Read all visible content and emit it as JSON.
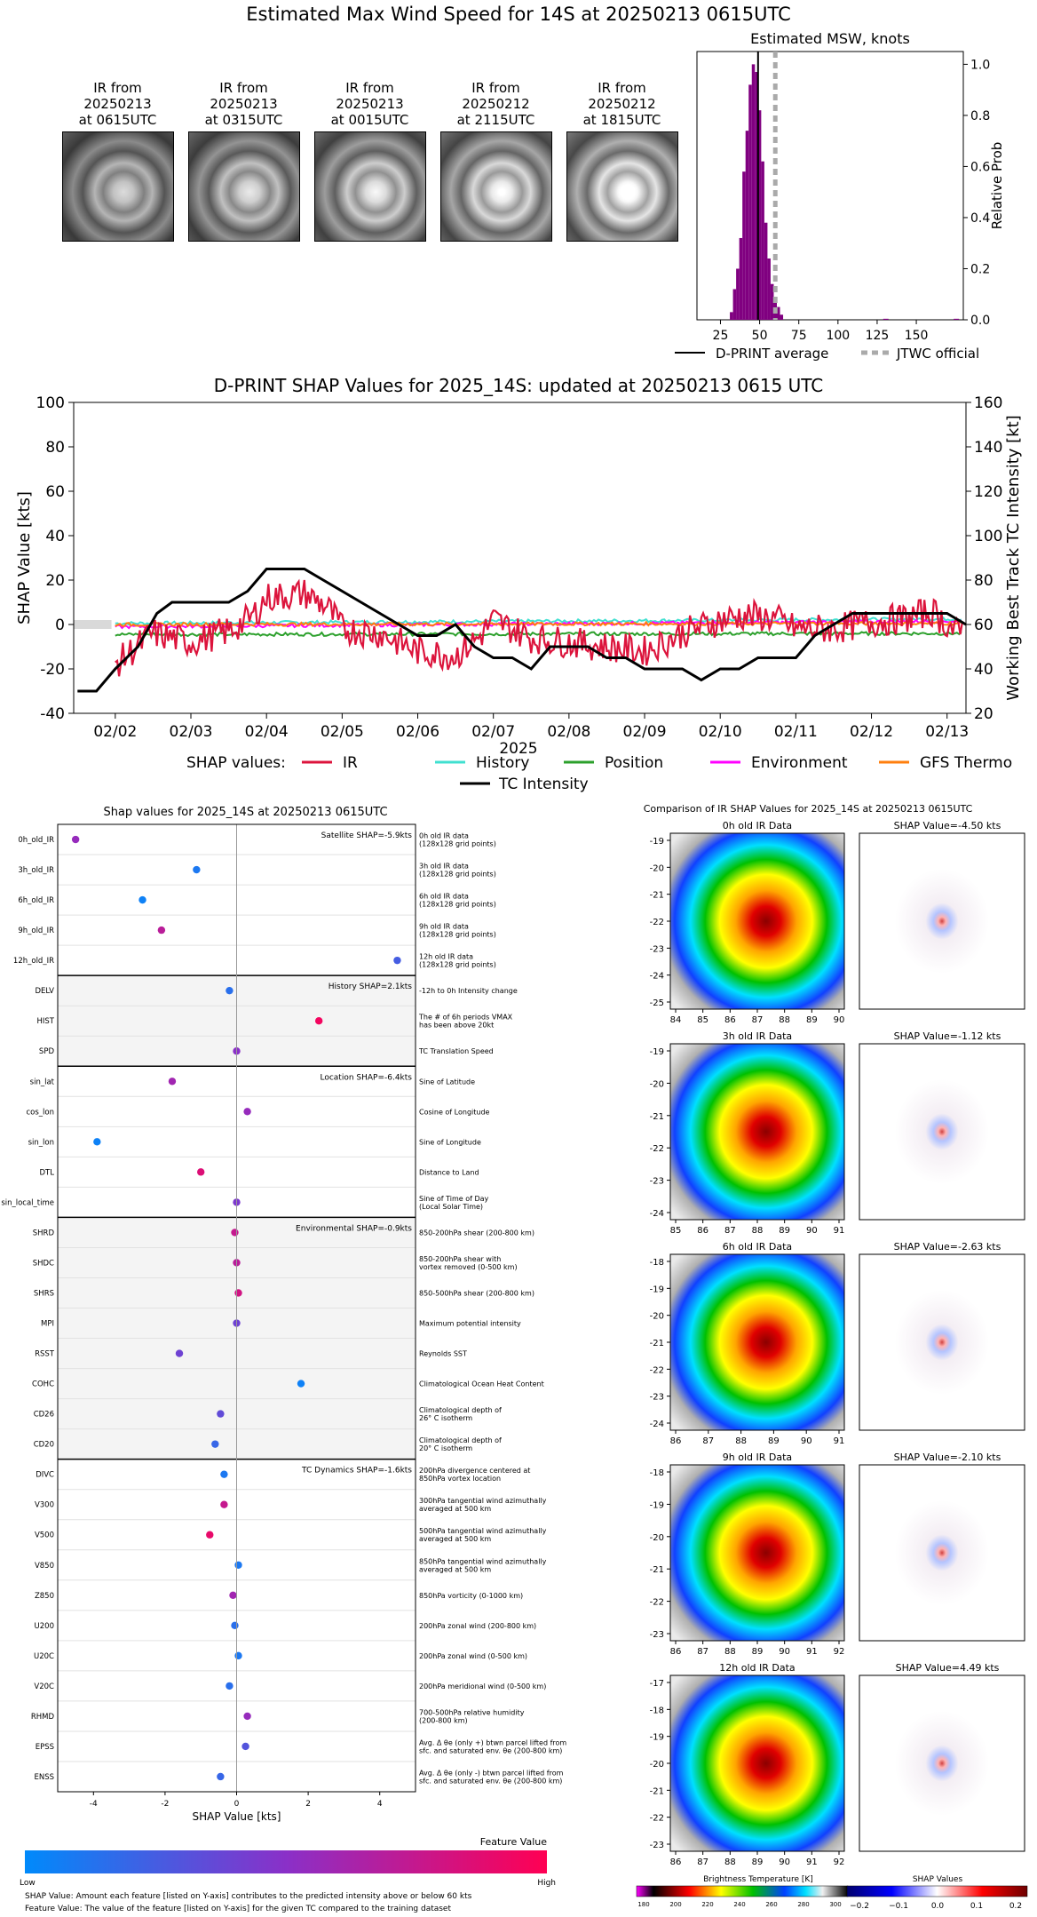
{
  "page_title": "Estimated Max Wind Speed for 14S at 20250213 0615UTC",
  "thumbnails": [
    {
      "label": [
        "IR from",
        "20250213",
        "at 0615UTC"
      ]
    },
    {
      "label": [
        "IR from",
        "20250213",
        "at 0315UTC"
      ]
    },
    {
      "label": [
        "IR from",
        "20250213",
        "at 0015UTC"
      ]
    },
    {
      "label": [
        "IR from",
        "20250212",
        "at 2115UTC"
      ]
    },
    {
      "label": [
        "IR from",
        "20250212",
        "at 1815UTC"
      ]
    }
  ],
  "chart_data": [
    {
      "id": "msw_histogram",
      "type": "bar",
      "title": "Estimated MSW, knots",
      "ylabel": "Relative Prob",
      "xlim": [
        10,
        180
      ],
      "ylim": [
        0,
        1.05
      ],
      "xticks": [
        "25",
        "50",
        "75",
        "100",
        "125",
        "150"
      ],
      "yticks": [
        "0.0",
        "0.2",
        "0.4",
        "0.6",
        "0.8",
        "1.0"
      ],
      "x": [
        32,
        34,
        36,
        38,
        40,
        42,
        44,
        46,
        48,
        50,
        52,
        54,
        56,
        58,
        60,
        62,
        64
      ],
      "values": [
        0.03,
        0.12,
        0.2,
        0.32,
        0.58,
        0.74,
        0.92,
        1.0,
        0.97,
        0.82,
        0.62,
        0.38,
        0.24,
        0.14,
        0.08,
        0.05,
        0.02
      ],
      "tail_values": [
        130,
        175
      ],
      "dprint_average": 49,
      "jtwc_official": 60,
      "legend": [
        "D-PRINT average",
        "JTWC official"
      ]
    },
    {
      "id": "shap_timeseries",
      "type": "line",
      "title": "D-PRINT SHAP Values for 2025_14S: updated at 20250213 0615 UTC",
      "xlabel": "2025",
      "ylabel": "SHAP Value [kts]",
      "ylabel_right": "Working Best Track TC Intensity [kt]",
      "ylim": [
        -40,
        100
      ],
      "ylim_right": [
        20,
        160
      ],
      "yticks": [
        "-40",
        "-20",
        "0",
        "20",
        "40",
        "60",
        "80",
        "100"
      ],
      "yticks_right": [
        "20",
        "40",
        "60",
        "80",
        "100",
        "120",
        "140",
        "160"
      ],
      "xticks": [
        "02/02",
        "02/03",
        "02/04",
        "02/05",
        "02/06",
        "02/07",
        "02/08",
        "02/09",
        "02/10",
        "02/11",
        "02/12",
        "02/13"
      ],
      "legend_prefix": "SHAP values:",
      "series": [
        {
          "name": "IR",
          "color": "#dc143c"
        },
        {
          "name": "History",
          "color": "#40e0d0"
        },
        {
          "name": "Position",
          "color": "#2ca02c"
        },
        {
          "name": "Environment",
          "color": "#ff00ff"
        },
        {
          "name": "GFS Thermo",
          "color": "#ff7f0e"
        },
        {
          "name": "TC Intensity",
          "color": "#000000"
        }
      ],
      "tc_intensity": {
        "t": [
          1.5,
          1.75,
          2.0,
          2.3,
          2.55,
          2.75,
          3.0,
          3.5,
          3.75,
          4.0,
          4.5,
          4.75,
          5.0,
          5.5,
          6.0,
          6.25,
          6.5,
          6.75,
          7.0,
          7.25,
          7.5,
          7.75,
          8.0,
          8.25,
          8.5,
          8.75,
          9.0,
          9.5,
          9.75,
          10.0,
          10.25,
          10.5,
          10.75,
          11.0,
          11.25,
          11.5,
          11.75,
          12.0,
          12.5,
          12.75,
          13.0,
          13.25
        ],
        "v": [
          30,
          30,
          40,
          50,
          65,
          70,
          70,
          70,
          75,
          85,
          85,
          80,
          75,
          65,
          55,
          55,
          60,
          50,
          45,
          45,
          40,
          50,
          50,
          50,
          45,
          45,
          40,
          40,
          35,
          40,
          40,
          45,
          45,
          45,
          55,
          60,
          65,
          65,
          65,
          65,
          65,
          60
        ]
      }
    },
    {
      "id": "feature_shap",
      "type": "scatter",
      "title": "Shap values for 2025_14S at 20250213 0615UTC",
      "xlabel": "SHAP Value [kts]",
      "xlim": [
        -5,
        5
      ],
      "xticks": [
        "-4",
        "-2",
        "0",
        "2",
        "4"
      ],
      "colorbar_label": "Feature Value",
      "colorbar_low": "Low",
      "colorbar_high": "High",
      "groups": [
        {
          "label": "Satellite SHAP=-5.9kts",
          "shaded": false,
          "features": [
            {
              "name": "0h_old_IR",
              "desc": [
                "0h old IR data",
                "(128x128 grid points)"
              ],
              "shap": -4.5,
              "value": 0.55
            },
            {
              "name": "3h_old_IR",
              "desc": [
                "3h old IR data",
                "(128x128 grid points)"
              ],
              "shap": -1.12,
              "value": 0.1
            },
            {
              "name": "6h_old_IR",
              "desc": [
                "6h old IR data",
                "(128x128 grid points)"
              ],
              "shap": -2.63,
              "value": 0.05
            },
            {
              "name": "9h_old_IR",
              "desc": [
                "9h old IR data",
                "(128x128 grid points)"
              ],
              "shap": -2.1,
              "value": 0.7
            },
            {
              "name": "12h_old_IR",
              "desc": [
                "12h old IR data",
                "(128x128 grid points)"
              ],
              "shap": 4.49,
              "value": 0.25
            }
          ]
        },
        {
          "label": "History SHAP=2.1kts",
          "shaded": true,
          "features": [
            {
              "name": "DELV",
              "desc": [
                "-12h to 0h Intensity change"
              ],
              "shap": -0.2,
              "value": 0.15
            },
            {
              "name": "HIST",
              "desc": [
                "The # of 6h periods VMAX",
                "has been above 20kt"
              ],
              "shap": 2.3,
              "value": 0.95
            },
            {
              "name": "SPD",
              "desc": [
                "TC Translation Speed"
              ],
              "shap": 0.0,
              "value": 0.5
            }
          ]
        },
        {
          "label": "Location SHAP=-6.4kts",
          "shaded": false,
          "features": [
            {
              "name": "sin_lat",
              "desc": [
                "Sine of Latitude"
              ],
              "shap": -1.8,
              "value": 0.6
            },
            {
              "name": "cos_lon",
              "desc": [
                "Cosine of Longitude"
              ],
              "shap": 0.3,
              "value": 0.55
            },
            {
              "name": "sin_lon",
              "desc": [
                "Sine of Longitude"
              ],
              "shap": -3.9,
              "value": 0.05
            },
            {
              "name": "DTL",
              "desc": [
                "Distance to Land"
              ],
              "shap": -1.0,
              "value": 0.85
            },
            {
              "name": "sin_local_time",
              "desc": [
                "Sine of Time of Day",
                "(Local Solar Time)"
              ],
              "shap": 0.0,
              "value": 0.45
            }
          ]
        },
        {
          "label": "Environmental SHAP=-0.9kts",
          "shaded": true,
          "features": [
            {
              "name": "SHRD",
              "desc": [
                "850-200hPa shear (200-800 km)"
              ],
              "shap": -0.05,
              "value": 0.75
            },
            {
              "name": "SHDC",
              "desc": [
                "850-200hPa shear with",
                "vortex removed (0-500 km)"
              ],
              "shap": 0.0,
              "value": 0.7
            },
            {
              "name": "SHRS",
              "desc": [
                "850-500hPa shear (200-800 km)"
              ],
              "shap": 0.05,
              "value": 0.8
            },
            {
              "name": "MPI",
              "desc": [
                "Maximum potential intensity"
              ],
              "shap": 0.0,
              "value": 0.4
            },
            {
              "name": "RSST",
              "desc": [
                "Reynolds SST"
              ],
              "shap": -1.6,
              "value": 0.4
            },
            {
              "name": "COHC",
              "desc": [
                "Climatological Ocean Heat Content"
              ],
              "shap": 1.8,
              "value": 0.05
            },
            {
              "name": "CD26",
              "desc": [
                "Climatological depth of",
                "26° C isotherm"
              ],
              "shap": -0.45,
              "value": 0.35
            },
            {
              "name": "CD20",
              "desc": [
                "Climatological depth of",
                "20° C isotherm"
              ],
              "shap": -0.6,
              "value": 0.2
            }
          ]
        },
        {
          "label": "TC Dynamics SHAP=-1.6kts",
          "shaded": false,
          "features": [
            {
              "name": "DIVC",
              "desc": [
                "200hPa divergence centered at",
                "850hPa vortex location"
              ],
              "shap": -0.35,
              "value": 0.1
            },
            {
              "name": "V300",
              "desc": [
                "300hPa tangential wind azimuthally",
                "averaged at 500 km"
              ],
              "shap": -0.35,
              "value": 0.75
            },
            {
              "name": "V500",
              "desc": [
                "500hPa tangential wind azimuthally",
                "averaged at 500 km"
              ],
              "shap": -0.75,
              "value": 0.9
            },
            {
              "name": "V850",
              "desc": [
                "850hPa tangential wind azimuthally",
                "averaged at 500 km"
              ],
              "shap": 0.05,
              "value": 0.1
            },
            {
              "name": "Z850",
              "desc": [
                "850hPa vorticity (0-1000 km)"
              ],
              "shap": -0.1,
              "value": 0.6
            },
            {
              "name": "U200",
              "desc": [
                "200hPa zonal wind (200-800 km)"
              ],
              "shap": -0.05,
              "value": 0.15
            },
            {
              "name": "U20C",
              "desc": [
                "200hPa zonal wind (0-500 km)"
              ],
              "shap": 0.05,
              "value": 0.1
            },
            {
              "name": "V20C",
              "desc": [
                "200hPa meridional wind (0-500 km)"
              ],
              "shap": -0.2,
              "value": 0.15
            },
            {
              "name": "RHMD",
              "desc": [
                "700-500hPa relative humidity",
                "(200-800 km)"
              ],
              "shap": 0.3,
              "value": 0.55
            },
            {
              "name": "EPSS",
              "desc": [
                "Avg. Δ θe (only +) btwn parcel lifted from",
                "sfc. and saturated env. θe (200-800 km)"
              ],
              "shap": 0.25,
              "value": 0.3
            },
            {
              "name": "ENSS",
              "desc": [
                "Avg. Δ θe (only -) btwn parcel lifted from",
                "sfc. and saturated env. θe (200-800 km)"
              ],
              "shap": -0.45,
              "value": 0.2
            }
          ]
        }
      ]
    },
    {
      "id": "ir_comparison",
      "type": "heatmap",
      "title": "Comparison of IR SHAP Values for 2025_14S at 20250213 0615UTC",
      "rows": [
        {
          "ir_title": "0h old IR Data",
          "shap_title": "SHAP Value=-4.50 kts",
          "yticks": [
            "-19",
            "-20",
            "-21",
            "-22",
            "-23",
            "-24",
            "-25"
          ],
          "xticks": [
            "84",
            "85",
            "86",
            "87",
            "88",
            "89",
            "90"
          ]
        },
        {
          "ir_title": "3h old IR Data",
          "shap_title": "SHAP Value=-1.12 kts",
          "yticks": [
            "-19",
            "-20",
            "-21",
            "-22",
            "-23",
            "-24"
          ],
          "xticks": [
            "85",
            "86",
            "87",
            "88",
            "89",
            "90",
            "91"
          ]
        },
        {
          "ir_title": "6h old IR Data",
          "shap_title": "SHAP Value=-2.63 kts",
          "yticks": [
            "-18",
            "-19",
            "-20",
            "-21",
            "-22",
            "-23",
            "-24"
          ],
          "xticks": [
            "86",
            "87",
            "88",
            "89",
            "90",
            "91"
          ]
        },
        {
          "ir_title": "9h old IR Data",
          "shap_title": "SHAP Value=-2.10 kts",
          "yticks": [
            "-18",
            "-19",
            "-20",
            "-21",
            "-22",
            "-23"
          ],
          "xticks": [
            "86",
            "87",
            "88",
            "89",
            "90",
            "91",
            "92"
          ]
        },
        {
          "ir_title": "12h old IR Data",
          "shap_title": "SHAP Value=4.49 kts",
          "yticks": [
            "-17",
            "-18",
            "-19",
            "-20",
            "-21",
            "-22",
            "-23"
          ],
          "xticks": [
            "86",
            "87",
            "88",
            "89",
            "90",
            "91",
            "92"
          ]
        }
      ],
      "bt_colorbar": {
        "label": "Brightness Temperature [K]",
        "ticks": [
          "180",
          "200",
          "220",
          "240",
          "260",
          "280",
          "300"
        ]
      },
      "shap_colorbar": {
        "label": "SHAP Values",
        "ticks": [
          "−0.2",
          "−0.1",
          "0.0",
          "0.1",
          "0.2"
        ]
      }
    }
  ],
  "footnotes": [
    "SHAP Value: Amount each feature [listed on Y-axis] contributes to the predicted intensity above or below 60 kts",
    "Feature Value: The value of the feature [listed on Y-axis] for the given TC compared to the training dataset"
  ]
}
